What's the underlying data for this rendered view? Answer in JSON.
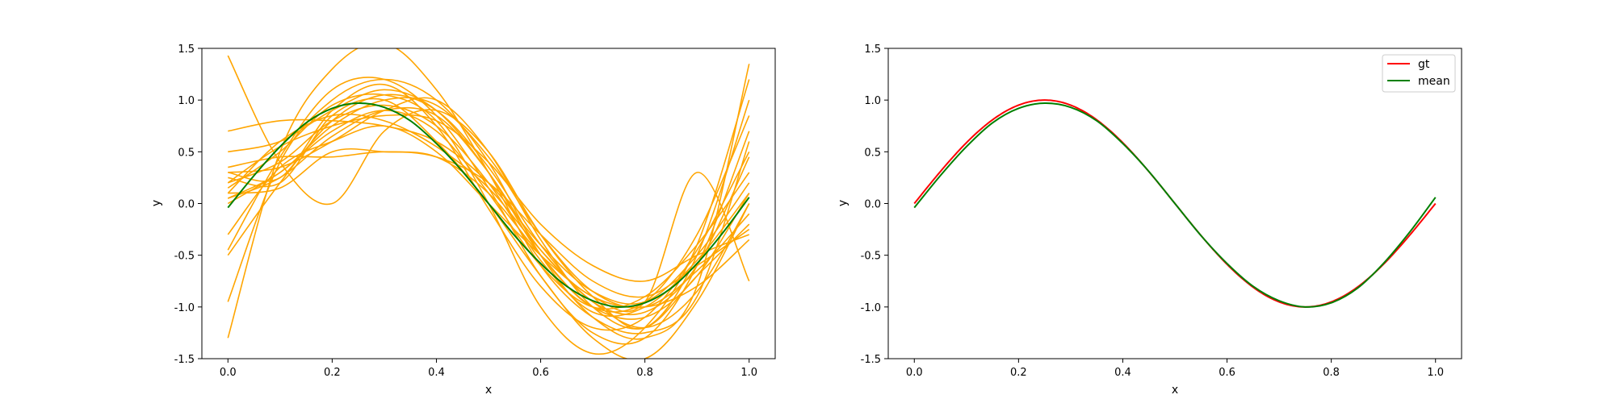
{
  "chart_data": [
    {
      "type": "line",
      "xlabel": "x",
      "ylabel": "y",
      "xlim": [
        -0.05,
        1.05
      ],
      "ylim": [
        -1.5,
        1.5
      ],
      "xticks": [
        "0.0",
        "0.2",
        "0.4",
        "0.6",
        "0.8",
        "1.0"
      ],
      "yticks": [
        "-1.5",
        "-1.0",
        "-0.5",
        "0.0",
        "0.5",
        "1.0",
        "1.5"
      ],
      "sample_color": "#FFA500",
      "mean_color": "#008000",
      "samples_x": [
        0.0,
        0.1,
        0.2,
        0.3,
        0.4,
        0.5,
        0.6,
        0.7,
        0.8,
        0.9,
        1.0
      ],
      "samples": [
        {
          "values": [
            1.43,
            0.4,
            0.0,
            0.7,
            0.9,
            0.5,
            -0.3,
            -0.9,
            -1.2,
            -0.5,
            1.0
          ]
        },
        {
          "values": [
            -1.3,
            0.5,
            1.3,
            1.55,
            1.1,
            0.3,
            -0.6,
            -1.1,
            -1.25,
            -0.9,
            0.6
          ]
        },
        {
          "values": [
            -0.95,
            0.4,
            1.0,
            1.2,
            1.0,
            0.4,
            -0.5,
            -1.1,
            -1.3,
            -0.8,
            1.35
          ]
        },
        {
          "values": [
            0.7,
            0.8,
            0.8,
            0.75,
            0.6,
            0.2,
            -0.4,
            -0.85,
            -0.95,
            -0.5,
            0.2
          ]
        },
        {
          "values": [
            0.2,
            0.55,
            0.75,
            0.85,
            0.8,
            0.4,
            -0.2,
            -0.6,
            -0.75,
            -0.5,
            -0.3
          ]
        },
        {
          "values": [
            0.35,
            0.45,
            0.45,
            0.5,
            0.45,
            0.2,
            -0.3,
            -0.75,
            -0.9,
            -0.6,
            -0.25
          ]
        },
        {
          "values": [
            0.1,
            0.15,
            0.5,
            0.5,
            0.45,
            0.1,
            -0.5,
            -1.0,
            -0.95,
            -0.3,
            0.85
          ]
        },
        {
          "values": [
            0.0,
            0.3,
            0.7,
            0.9,
            0.7,
            0.1,
            -0.6,
            -1.0,
            -0.9,
            -0.4,
            0.3
          ]
        },
        {
          "values": [
            0.5,
            0.6,
            0.9,
            1.1,
            0.9,
            0.3,
            -0.5,
            -1.0,
            -1.1,
            -0.7,
            0.1
          ]
        },
        {
          "values": [
            -0.5,
            0.2,
            0.8,
            1.05,
            0.9,
            0.35,
            -0.4,
            -0.95,
            -1.05,
            -0.6,
            0.45
          ]
        },
        {
          "values": [
            0.25,
            0.2,
            0.85,
            1.0,
            0.6,
            0.0,
            -0.7,
            -1.3,
            -1.5,
            -0.95,
            0.0
          ]
        },
        {
          "values": [
            0.3,
            0.35,
            0.6,
            0.9,
            1.0,
            0.5,
            -0.35,
            -1.0,
            -1.2,
            -0.7,
            -0.2
          ]
        },
        {
          "values": [
            -0.45,
            0.45,
            1.1,
            1.2,
            0.85,
            0.15,
            -0.7,
            -1.25,
            -1.3,
            -0.6,
            0.7
          ]
        },
        {
          "values": [
            0.2,
            0.4,
            0.8,
            0.95,
            0.75,
            0.2,
            -0.55,
            -1.05,
            -1.0,
            -0.55,
            0.1
          ]
        },
        {
          "values": [
            0.15,
            0.5,
            0.95,
            1.05,
            0.8,
            0.0,
            -1.0,
            -1.45,
            -1.2,
            -0.4,
            1.2
          ]
        },
        {
          "values": [
            0.05,
            0.3,
            0.75,
            1.0,
            0.95,
            0.45,
            -0.3,
            -0.85,
            -1.0,
            -0.65,
            -0.1
          ]
        },
        {
          "values": [
            0.3,
            0.25,
            0.9,
            1.15,
            0.75,
            -0.05,
            -0.8,
            -1.2,
            -1.1,
            -0.45,
            0.5
          ]
        },
        {
          "values": [
            -0.3,
            0.35,
            0.6,
            0.75,
            0.5,
            0.0,
            -0.5,
            -0.9,
            -1.0,
            -0.8,
            -0.35
          ]
        },
        {
          "values": [
            0.1,
            0.6,
            0.85,
            0.8,
            0.55,
            0.15,
            -0.45,
            -0.95,
            -1.2,
            -0.85,
            0.0
          ]
        },
        {
          "values": [
            0.05,
            0.25,
            0.65,
            0.9,
            0.85,
            0.3,
            -0.45,
            -0.9,
            -0.95,
            0.3,
            -0.75
          ]
        }
      ],
      "mean_x": [
        0.0,
        0.05,
        0.1,
        0.15,
        0.2,
        0.25,
        0.3,
        0.35,
        0.4,
        0.45,
        0.5,
        0.55,
        0.6,
        0.65,
        0.7,
        0.75,
        0.8,
        0.85,
        0.9,
        0.95,
        1.0
      ],
      "mean": [
        -0.04,
        0.27,
        0.55,
        0.78,
        0.92,
        0.97,
        0.93,
        0.8,
        0.58,
        0.31,
        0.0,
        -0.31,
        -0.58,
        -0.8,
        -0.94,
        -1.0,
        -0.96,
        -0.82,
        -0.58,
        -0.28,
        0.06
      ]
    },
    {
      "type": "line",
      "xlabel": "x",
      "ylabel": "y",
      "xlim": [
        -0.05,
        1.05
      ],
      "ylim": [
        -1.5,
        1.5
      ],
      "xticks": [
        "0.0",
        "0.2",
        "0.4",
        "0.6",
        "0.8",
        "1.0"
      ],
      "yticks": [
        "-1.5",
        "-1.0",
        "-0.5",
        "0.0",
        "0.5",
        "1.0",
        "1.5"
      ],
      "legend_position": "top-right",
      "series": [
        {
          "name": "gt",
          "color": "#FF0000",
          "function": "sin(2*pi*x)"
        },
        {
          "name": "mean",
          "color": "#008000",
          "x": [
            0.0,
            0.05,
            0.1,
            0.15,
            0.2,
            0.25,
            0.3,
            0.35,
            0.4,
            0.45,
            0.5,
            0.55,
            0.6,
            0.65,
            0.7,
            0.75,
            0.8,
            0.85,
            0.9,
            0.95,
            1.0
          ],
          "values": [
            -0.04,
            0.27,
            0.55,
            0.78,
            0.92,
            0.97,
            0.93,
            0.8,
            0.58,
            0.31,
            0.0,
            -0.31,
            -0.58,
            -0.8,
            -0.94,
            -1.0,
            -0.96,
            -0.82,
            -0.58,
            -0.28,
            0.06
          ]
        }
      ]
    }
  ]
}
